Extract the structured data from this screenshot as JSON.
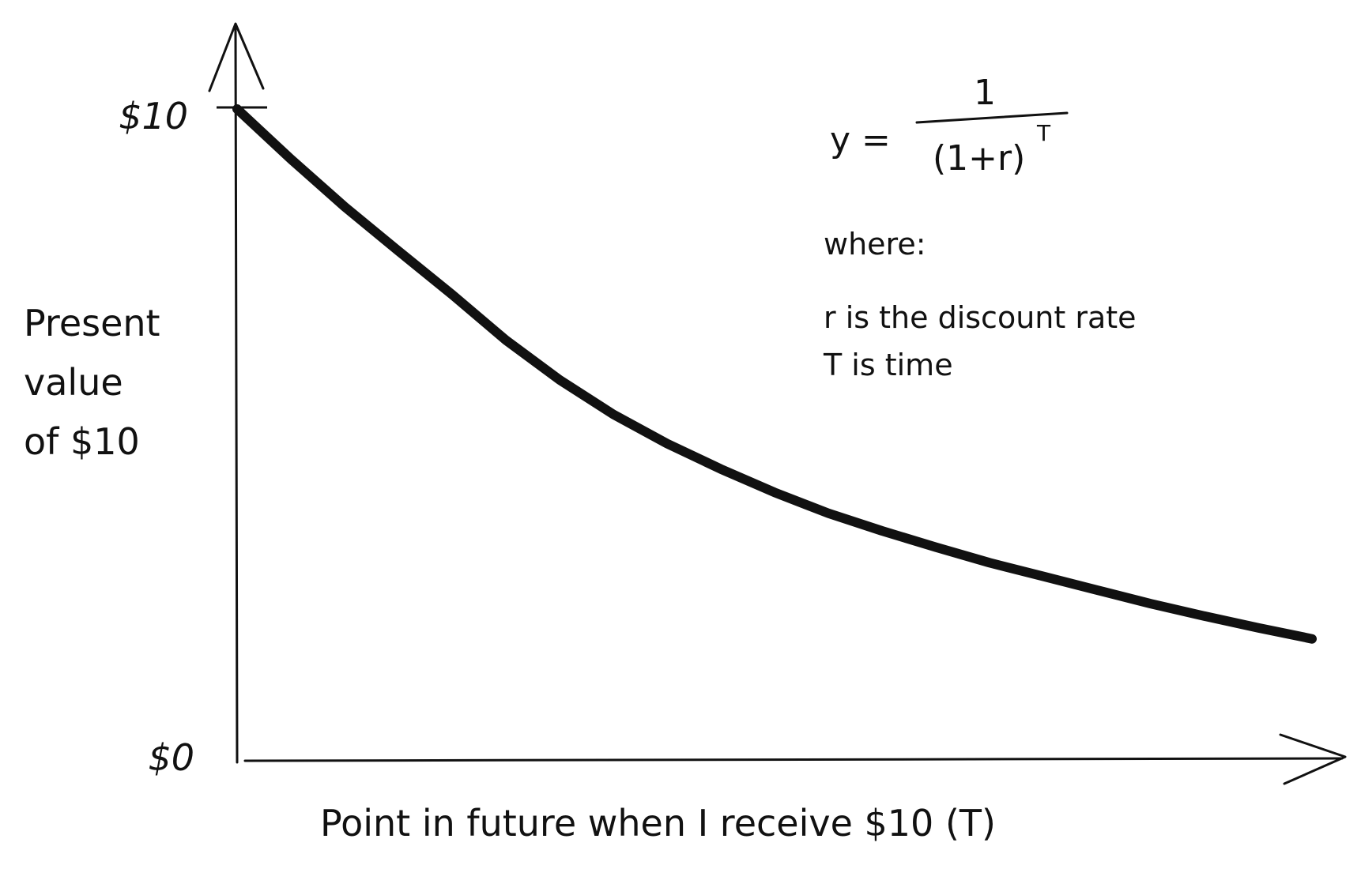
{
  "chart_data": {
    "type": "line",
    "xlabel": "Point in future when I receive $10 (T)",
    "ylabel_lines": [
      "Present",
      "value",
      "of $10"
    ],
    "y_tick_labels": {
      "top": "$10",
      "bottom": "$0"
    },
    "x": [
      0,
      1,
      2,
      3,
      4,
      5,
      6,
      7,
      8,
      9,
      10,
      11,
      12,
      13,
      14,
      15,
      16,
      17,
      18,
      19,
      20
    ],
    "values": [
      10.0,
      9.23,
      8.5,
      7.82,
      7.15,
      6.45,
      5.84,
      5.31,
      4.86,
      4.47,
      4.11,
      3.79,
      3.52,
      3.27,
      3.03,
      2.82,
      2.61,
      2.4,
      2.21,
      2.03,
      1.86
    ],
    "ylim": [
      0,
      10
    ],
    "xlim": [
      0,
      20
    ],
    "grid": false,
    "line_color": "#111111",
    "annotations": {
      "formula_lhs": "y =",
      "formula_numerator": "1",
      "formula_denominator": "(1+r)",
      "formula_exponent": "T",
      "where": "where:",
      "def_r": "r is the discount rate",
      "def_t": "T is time"
    }
  }
}
